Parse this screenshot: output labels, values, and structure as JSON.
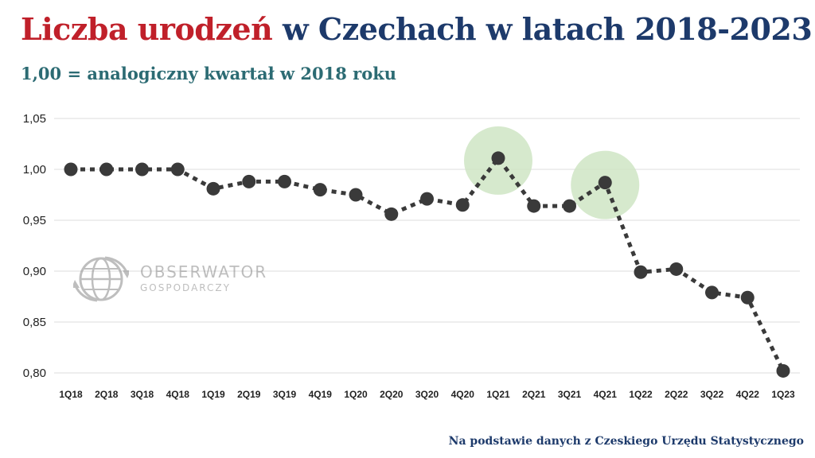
{
  "header": {
    "title_part1": "Liczba urodzeń",
    "title_part2": " w Czechach w latach 2018-2023",
    "subtitle": "1,00 = analogiczny kwartał w 2018 roku"
  },
  "watermark": {
    "name": "OBSERWATOR",
    "sub": "GOSPODARCZY",
    "icon": "globe-arrows-icon"
  },
  "source": "Na podstawie danych  z Czeskiego Urzędu Statystycznego",
  "colors": {
    "title_red": "#c0202a",
    "title_blue": "#1d3a6b",
    "subtitle": "#2c6b73",
    "series": "#3a3a3a",
    "highlight": "#cfe5c4",
    "grid": "#dcdcdc"
  },
  "chart_data": {
    "type": "line",
    "line_style": "dotted",
    "grid": true,
    "ylim": [
      0.8,
      1.05
    ],
    "yticks": [
      "0,80",
      "0,85",
      "0,90",
      "0,95",
      "1,00",
      "1,05"
    ],
    "ytick_values": [
      0.8,
      0.85,
      0.9,
      0.95,
      1.0,
      1.05
    ],
    "categories": [
      "1Q18",
      "2Q18",
      "3Q18",
      "4Q18",
      "1Q19",
      "2Q19",
      "3Q19",
      "4Q19",
      "1Q20",
      "2Q20",
      "3Q20",
      "4Q20",
      "1Q21",
      "2Q21",
      "3Q21",
      "4Q21",
      "1Q22",
      "2Q22",
      "3Q22",
      "4Q22",
      "1Q23"
    ],
    "series": [
      {
        "values": [
          1.0,
          1.0,
          1.0,
          1.0,
          0.981,
          0.988,
          0.988,
          0.98,
          0.975,
          0.956,
          0.971,
          0.965,
          1.011,
          0.964,
          0.964,
          0.987,
          0.899,
          0.902,
          0.879,
          0.874,
          0.802
        ]
      }
    ],
    "highlighted": [
      "1Q21",
      "4Q21"
    ]
  }
}
